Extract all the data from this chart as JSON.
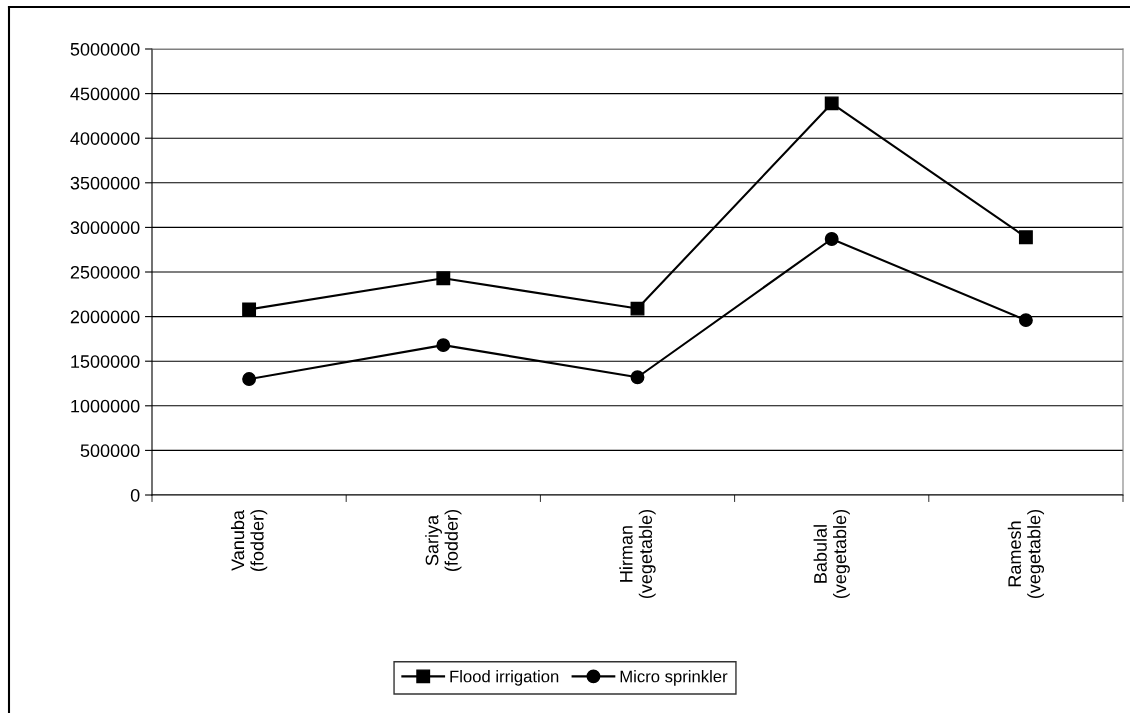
{
  "chart_data": {
    "type": "line",
    "categories": [
      "Vanuba\n(fodder)",
      "Sariya\n(fodder)",
      "Hirman\n(vegetable)",
      "Babulal\n(vegetable)",
      "Ramesh\n(vegetable)"
    ],
    "series": [
      {
        "name": "Flood irrigation",
        "color": "#000000",
        "marker": "square",
        "values": [
          2080000,
          2430000,
          2090000,
          4390000,
          2890000
        ]
      },
      {
        "name": "Micro sprinkler",
        "color": "#000000",
        "marker": "circle",
        "values": [
          1300000,
          1680000,
          1320000,
          2870000,
          1960000
        ]
      }
    ],
    "ylim": [
      0,
      5000000
    ],
    "yticks": [
      0,
      500000,
      1000000,
      1500000,
      2000000,
      2500000,
      3000000,
      3500000,
      4000000,
      4500000,
      5000000
    ],
    "grid": "y",
    "legend": "bottom",
    "line_style": "solid"
  }
}
